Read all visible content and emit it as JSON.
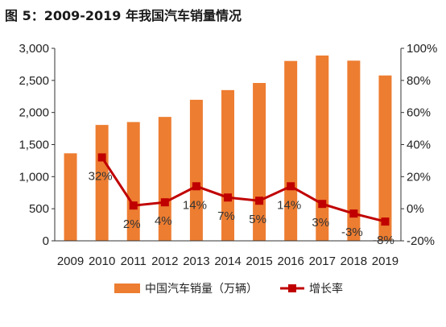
{
  "title": "图 5：2009-2019 年我国汽车销量情况",
  "chart_data": {
    "type": "bar",
    "categories": [
      "2009",
      "2010",
      "2011",
      "2012",
      "2013",
      "2014",
      "2015",
      "2016",
      "2017",
      "2018",
      "2019"
    ],
    "series": [
      {
        "name": "中国汽车销量（万辆）",
        "type": "bar",
        "axis": "left",
        "color": "#ED7D31",
        "values": [
          1364,
          1806,
          1851,
          1931,
          2198,
          2349,
          2460,
          2803,
          2888,
          2808,
          2577
        ]
      },
      {
        "name": "增长率",
        "type": "line",
        "axis": "right",
        "color": "#C00000",
        "values": [
          null,
          32,
          2,
          4,
          14,
          7,
          5,
          14,
          3,
          -3,
          -8
        ],
        "labels": [
          "",
          "32%",
          "2%",
          "4%",
          "14%",
          "7%",
          "5%",
          "14%",
          "3%",
          "-3%",
          "-8%"
        ]
      }
    ],
    "y_left": {
      "min": 0,
      "max": 3000,
      "ticks": [
        0,
        500,
        1000,
        1500,
        2000,
        2500,
        3000
      ],
      "tick_labels": [
        "0",
        "500",
        "1,000",
        "1,500",
        "2,000",
        "2,500",
        "3,000"
      ]
    },
    "y_right": {
      "min": -20,
      "max": 100,
      "ticks": [
        -20,
        0,
        20,
        40,
        60,
        80,
        100
      ],
      "tick_labels": [
        "-20%",
        "0%",
        "20%",
        "40%",
        "60%",
        "80%",
        "100%"
      ]
    },
    "grid": false,
    "legend_position": "bottom"
  }
}
